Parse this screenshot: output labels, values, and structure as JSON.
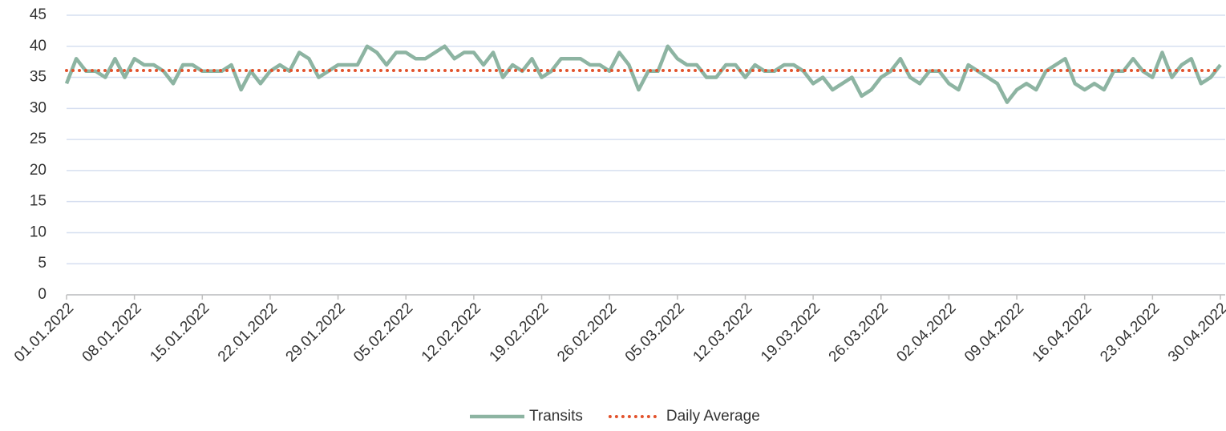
{
  "chart_data": {
    "type": "line",
    "categories": [
      "01.01.2022",
      null,
      null,
      null,
      null,
      null,
      null,
      "08.01.2022",
      null,
      null,
      null,
      null,
      null,
      null,
      "15.01.2022",
      null,
      null,
      null,
      null,
      null,
      null,
      "22.01.2022",
      null,
      null,
      null,
      null,
      null,
      null,
      "29.01.2022",
      null,
      null,
      null,
      null,
      null,
      null,
      "05.02.2022",
      null,
      null,
      null,
      null,
      null,
      null,
      "12.02.2022",
      null,
      null,
      null,
      null,
      null,
      null,
      "19.02.2022",
      null,
      null,
      null,
      null,
      null,
      null,
      "26.02.2022",
      null,
      null,
      null,
      null,
      null,
      null,
      "05.03.2022",
      null,
      null,
      null,
      null,
      null,
      null,
      "12.03.2022",
      null,
      null,
      null,
      null,
      null,
      null,
      "19.03.2022",
      null,
      null,
      null,
      null,
      null,
      null,
      "26.03.2022",
      null,
      null,
      null,
      null,
      null,
      null,
      "02.04.2022",
      null,
      null,
      null,
      null,
      null,
      null,
      "09.04.2022",
      null,
      null,
      null,
      null,
      null,
      null,
      "16.04.2022",
      null,
      null,
      null,
      null,
      null,
      null,
      "23.04.2022",
      null,
      null,
      null,
      null,
      null,
      null,
      "30.04.2022"
    ],
    "series": [
      {
        "name": "Transits",
        "color": "#8db4a2",
        "style": "solid",
        "values": [
          34,
          38,
          36,
          36,
          35,
          38,
          35,
          38,
          37,
          37,
          36,
          34,
          37,
          37,
          36,
          36,
          36,
          37,
          33,
          36,
          34,
          36,
          37,
          36,
          39,
          38,
          35,
          36,
          37,
          37,
          37,
          40,
          39,
          37,
          39,
          39,
          38,
          38,
          39,
          40,
          38,
          39,
          39,
          37,
          39,
          35,
          37,
          36,
          38,
          35,
          36,
          38,
          38,
          38,
          37,
          37,
          36,
          39,
          37,
          33,
          36,
          36,
          40,
          38,
          37,
          37,
          35,
          35,
          37,
          37,
          35,
          37,
          36,
          36,
          37,
          37,
          36,
          34,
          35,
          33,
          34,
          35,
          32,
          33,
          35,
          36,
          38,
          35,
          34,
          36,
          36,
          34,
          33,
          37,
          36,
          35,
          34,
          31,
          33,
          34,
          33,
          36,
          37,
          38,
          34,
          33,
          34,
          33,
          36,
          36,
          38,
          36,
          35,
          39,
          35,
          37,
          38,
          34,
          35,
          37
        ]
      },
      {
        "name": "Daily Average",
        "color": "#e2532d",
        "style": "dotted",
        "values": [
          36.1,
          36.1,
          36.1,
          36.1,
          36.1,
          36.1,
          36.1,
          36.1,
          36.1,
          36.1,
          36.1,
          36.1,
          36.1,
          36.1,
          36.1,
          36.1,
          36.1,
          36.1,
          36.1,
          36.1,
          36.1,
          36.1,
          36.1,
          36.1,
          36.1,
          36.1,
          36.1,
          36.1,
          36.1,
          36.1,
          36.1,
          36.1,
          36.1,
          36.1,
          36.1,
          36.1,
          36.1,
          36.1,
          36.1,
          36.1,
          36.1,
          36.1,
          36.1,
          36.1,
          36.1,
          36.1,
          36.1,
          36.1,
          36.1,
          36.1,
          36.1,
          36.1,
          36.1,
          36.1,
          36.1,
          36.1,
          36.1,
          36.1,
          36.1,
          36.1,
          36.1,
          36.1,
          36.1,
          36.1,
          36.1,
          36.1,
          36.1,
          36.1,
          36.1,
          36.1,
          36.1,
          36.1,
          36.1,
          36.1,
          36.1,
          36.1,
          36.1,
          36.1,
          36.1,
          36.1,
          36.1,
          36.1,
          36.1,
          36.1,
          36.1,
          36.1,
          36.1,
          36.1,
          36.1,
          36.1,
          36.1,
          36.1,
          36.1,
          36.1,
          36.1,
          36.1,
          36.1,
          36.1,
          36.1,
          36.1,
          36.1,
          36.1,
          36.1,
          36.1,
          36.1,
          36.1,
          36.1,
          36.1,
          36.1,
          36.1,
          36.1,
          36.1,
          36.1,
          36.1,
          36.1,
          36.1,
          36.1,
          36.1,
          36.1,
          36.1
        ]
      }
    ],
    "ylim": [
      0,
      45
    ],
    "yticks": [
      0,
      5,
      10,
      15,
      20,
      25,
      30,
      35,
      40,
      45
    ],
    "grid": true,
    "legend": "bottom"
  }
}
